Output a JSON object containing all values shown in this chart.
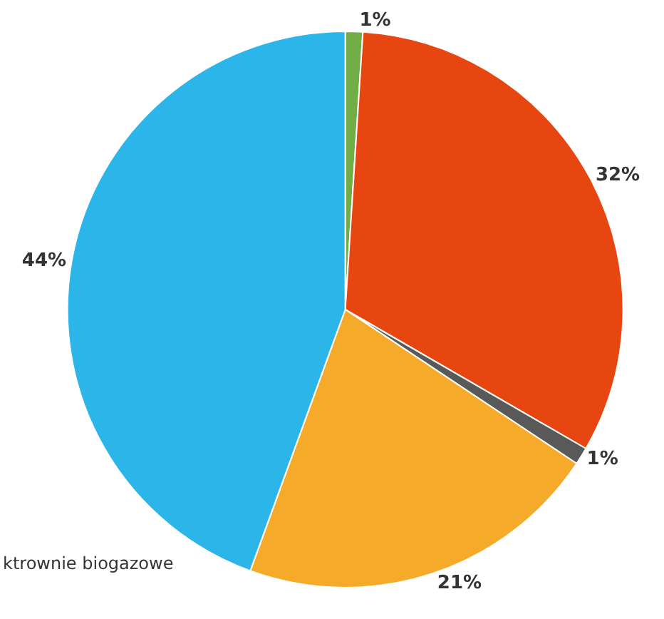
{
  "chart_data": {
    "type": "pie",
    "categories": [
      null,
      null,
      null,
      null,
      null
    ],
    "values": [
      1,
      32,
      1,
      21,
      44
    ],
    "colors": [
      "#70ad47",
      "#e84610",
      "#595959",
      "#f5aa2a",
      "#2cb5e8"
    ],
    "value_labels": [
      "1%",
      "32%",
      "1%",
      "21%",
      "44%"
    ],
    "legend": false,
    "annotations": [
      "ktrownie biogazowe"
    ]
  }
}
